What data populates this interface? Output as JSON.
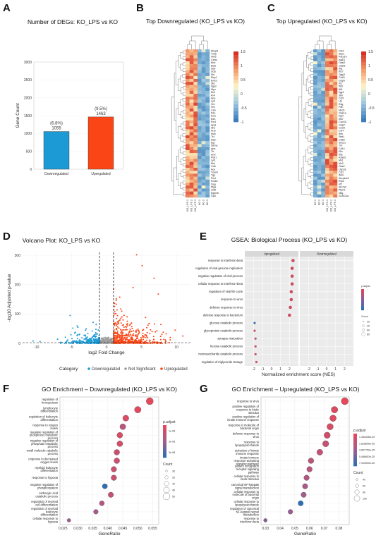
{
  "panel_labels": [
    "A",
    "B",
    "C",
    "D",
    "E",
    "F",
    "G"
  ],
  "heat_ramp": [
    "#3a7db8",
    "#9cc6e0",
    "#fdf6c8",
    "#f39b6b",
    "#d73027"
  ],
  "chart_data": [
    {
      "id": "A",
      "type": "bar",
      "title": "Number of DEGs: KO_LPS vs KO",
      "categories": [
        "Downregulated",
        "Upregulated"
      ],
      "values": [
        1055,
        1463
      ],
      "percent_labels": [
        "(6.8%)",
        "(9.5%)"
      ],
      "count_labels": [
        "1055",
        "1463"
      ],
      "colors": [
        "#1b9ad6",
        "#fa4616"
      ],
      "ylabel": "Gene Count",
      "xlabel": "",
      "ylim": [
        0,
        3000
      ],
      "yticks": [
        0,
        500,
        1000,
        1500,
        2000,
        2500,
        3000
      ]
    },
    {
      "id": "B",
      "type": "heatmap",
      "title": "Top Downregulated (KO_LPS vs KO)",
      "columns": [
        "KO_LPS 1",
        "KO_LPS 2",
        "KO_LPS 3",
        "KO 1",
        "KO 2",
        "KO 3"
      ],
      "genes": [
        "Mmp8",
        "Tnfrp",
        "Ifnk2",
        "Cebp",
        "Kbb",
        "Bcl6",
        "Sdb",
        "Scfp",
        "Sts",
        "Rbp1",
        "Emb1",
        "Sk1",
        "Itga2",
        "Mpx",
        "Mxf",
        "Rr4",
        "Anp",
        "Ly6",
        "Hr1",
        "Hm",
        "Ce6",
        "Dsn",
        "Kcl1",
        "Edn",
        "Rxr1",
        "Appl",
        "Ahc",
        "Arrp",
        "Ndn",
        "Tr4",
        "Dlan",
        "Egr",
        "Sema",
        "Apa",
        "Ttr",
        "Arhl",
        "Pdk1",
        "Lyt1",
        "Mnl",
        "Cd6",
        "Aox",
        "Tmem",
        "Tgp",
        "Pcol",
        "Rrase",
        "Dag",
        "Ptga",
        "Hdzl",
        "Egemb",
        "Gp5"
      ],
      "legend_ticks": [
        1.5,
        1,
        0.5,
        0,
        -0.5,
        -1
      ],
      "scale_min": -1,
      "scale_max": 1.5
    },
    {
      "id": "C",
      "type": "heatmap",
      "title": "Top Upregulated (KO_LPS vs KO)",
      "columns": [
        "KO 1",
        "KO 2",
        "KO 3",
        "KO_LPS 1",
        "KO_LPS 2",
        "KO_LPS 3"
      ],
      "genes": [
        "Cts3",
        "Zbp1",
        "Parp14",
        "Isg15",
        "Oasl2",
        "Oasl3",
        "Ifit1",
        "Ifi27",
        "Tgtp2",
        "Cd40",
        "Gbp5",
        "Irf1",
        "Ifit3",
        "Ifit1",
        "Iigp1",
        "Slfn",
        "Ccl5",
        "Ltp",
        "Rsg",
        "Pdh",
        "Nlrc5",
        "Oas1a",
        "Irgm",
        "Ifi47",
        "Cxcl10",
        "Gbp2",
        "Cxcl9",
        "Ccl4",
        "Ifnb",
        "Stat1",
        "Cd69",
        "Socs1",
        "Tnf",
        "Cd14",
        "Il1b",
        "Ifit2",
        "Rsad2",
        "Mx1",
        "Mx2",
        "Oas2",
        "Usp18",
        "Ccl2",
        "Ifi44",
        "Serpina3",
        "Rtp4",
        "Irf7",
        "Slc7a2",
        "Ptpn2",
        "Nkg",
        "Zc3h12a"
      ],
      "legend_ticks": [
        1.5,
        1,
        0.5,
        0,
        -0.5,
        -1
      ],
      "scale_min": -1,
      "scale_max": 1.5
    },
    {
      "id": "D",
      "type": "scatter",
      "title": "Volcano Plot: KO_LPS vs KO",
      "xlabel": "log2 Fold Change",
      "ylabel": "-log10 Adjusted p-value",
      "xlim": [
        -12,
        12
      ],
      "ylim": [
        0,
        310
      ],
      "xticks": [
        -10,
        -5,
        0,
        5,
        10
      ],
      "yticks": [
        0,
        100,
        200,
        300
      ],
      "threshold_lines_x": [
        -1,
        1
      ],
      "legend_title": "Category",
      "categories": [
        "Downregulated",
        "Not Significant",
        "Upregulated"
      ],
      "colors": [
        "#1b9ad6",
        "#9a9a9a",
        "#fa4616"
      ]
    },
    {
      "id": "E",
      "type": "scatter",
      "title": "GSEA: Biological Process (KO_LPS vs KO)",
      "facets": [
        "Upregulated",
        "Downregulated"
      ],
      "xlabel": "Normalized enrichment score (NES)",
      "xlim": [
        -3,
        3
      ],
      "xticks": [
        -2,
        -1,
        0,
        1,
        2
      ],
      "legend_color_title": "p.adjust",
      "legend_size_title": "Count",
      "legend_size_values": [
        20,
        40,
        60,
        80
      ],
      "terms": [
        "response to interferon-beta",
        "regulation of viral genome replication",
        "negative regulation of viral process",
        "cellular response to interferon-beta",
        "regulation of viral life cycle",
        "response to virus",
        "defense response to virus",
        "defense response to bacterium",
        "glucose catabolic process",
        "glycoprotein catabolic process",
        "synapse maturation",
        "hexose catabolic process",
        "monosaccharide catabolic process",
        "regulation of triglyceride storage"
      ],
      "nes": [
        2.4,
        2.3,
        2.3,
        2.3,
        2.2,
        2.2,
        2.1,
        2.0,
        -1.9,
        -1.9,
        -1.8,
        -1.8,
        -1.8,
        -1.7
      ]
    },
    {
      "id": "F",
      "type": "scatter",
      "title": "GO Enrichment – Downregulated (KO_LPS vs KO)",
      "xlabel": "GeneRatio",
      "xlim": [
        0.024,
        0.057
      ],
      "xticks": [
        0.025,
        0.03,
        0.035,
        0.04,
        0.045,
        0.05,
        0.055
      ],
      "tick_labels": [
        "0.025",
        "0.030",
        "0.035",
        "0.040",
        "0.045",
        "0.050",
        "0.055"
      ],
      "legend_color_title": "p.adjust",
      "legend_color_ticks": [
        "1e-08",
        "2e-08",
        "3e-08"
      ],
      "legend_size_title": "Count",
      "legend_size_values": [
        30,
        35,
        40,
        45,
        50
      ],
      "terms": [
        "regulation of hemopoiesis",
        "lymphocyte differentiation",
        "regulation of leukocyte differentiation",
        "response to oxygen levels",
        "negative regulation of phosphorus metabolic process",
        "negative regulation of phosphate metabolic process",
        "small molecule catabolic process",
        "response to decreased oxygen levels",
        "myeloid leukocyte differentiation",
        "response to hypoxia",
        "negative regulation of phosphorylation",
        "carboxylic acid catabolic process",
        "regulation of myeloid cell differentiation",
        "regulation of myeloid leukocyte differentiation",
        "cellular response to hypoxia"
      ],
      "gene_ratio": [
        0.054,
        0.05,
        0.046,
        0.045,
        0.044,
        0.044,
        0.043,
        0.043,
        0.042,
        0.042,
        0.039,
        0.041,
        0.038,
        0.036,
        0.027
      ],
      "count": [
        52,
        48,
        44,
        43,
        42,
        42,
        41,
        41,
        40,
        40,
        37,
        39,
        36,
        34,
        26
      ],
      "p_adjust": [
        3.2e-09,
        4e-09,
        6e-09,
        1.4e-08,
        7e-09,
        7e-09,
        9e-09,
        9e-09,
        1e-08,
        1e-08,
        3.5e-08,
        1.1e-08,
        1.5e-08,
        1.8e-08,
        2e-08
      ]
    },
    {
      "id": "G",
      "type": "scatter",
      "title": "GO Enrichment – Upregulated (KO_LPS vs KO)",
      "xlabel": "GeneRatio",
      "xlim": [
        0.027,
        0.087
      ],
      "xticks": [
        0.03,
        0.04,
        0.05,
        0.06,
        0.07,
        0.08
      ],
      "tick_labels": [
        "0.03",
        "0.04",
        "0.05",
        "0.06",
        "0.07",
        "0.08"
      ],
      "legend_color_title": "p.adjust",
      "legend_color_ticks": [
        "1.460328e-49",
        "1.828898e-35",
        "3.657759e-35",
        "5.486653e-35",
        "7.315390e-35"
      ],
      "legend_size_title": "Count",
      "legend_size_values": [
        40,
        60,
        80,
        100
      ],
      "terms": [
        "response to virus",
        "positive regulation of response to biotic stimulus",
        "positive regulation of innate immune response",
        "response to molecule of bacterial origin",
        "defense response to virus",
        "response to lipopolysaccharide",
        "activation of innate immune response",
        "innate immune response-activating signaling pathway",
        "pattern recognition receptor signaling pathway",
        "cellular response to biotic stimulus",
        "canonical NF-kappaB signal transduction",
        "cellular response to molecule of bacterial origin",
        "cellular response to lipopolysaccharide",
        "regulation of canonical NF-kappaB signal transduction",
        "response to interferon-beta"
      ],
      "gene_ratio": [
        0.084,
        0.077,
        0.076,
        0.074,
        0.072,
        0.071,
        0.067,
        0.061,
        0.06,
        0.058,
        0.057,
        0.056,
        0.054,
        0.047,
        0.03
      ],
      "count": [
        108,
        98,
        96,
        94,
        92,
        90,
        86,
        78,
        76,
        74,
        72,
        72,
        70,
        60,
        38
      ],
      "p_adjust": [
        1e-49,
        5e-36,
        5e-36,
        8e-36,
        1e-35,
        1.5e-35,
        1.8e-35,
        2e-35,
        2.2e-35,
        2.5e-35,
        3e-35,
        3.2e-35,
        6.5e-35,
        3.5e-35,
        4e-35
      ]
    }
  ]
}
